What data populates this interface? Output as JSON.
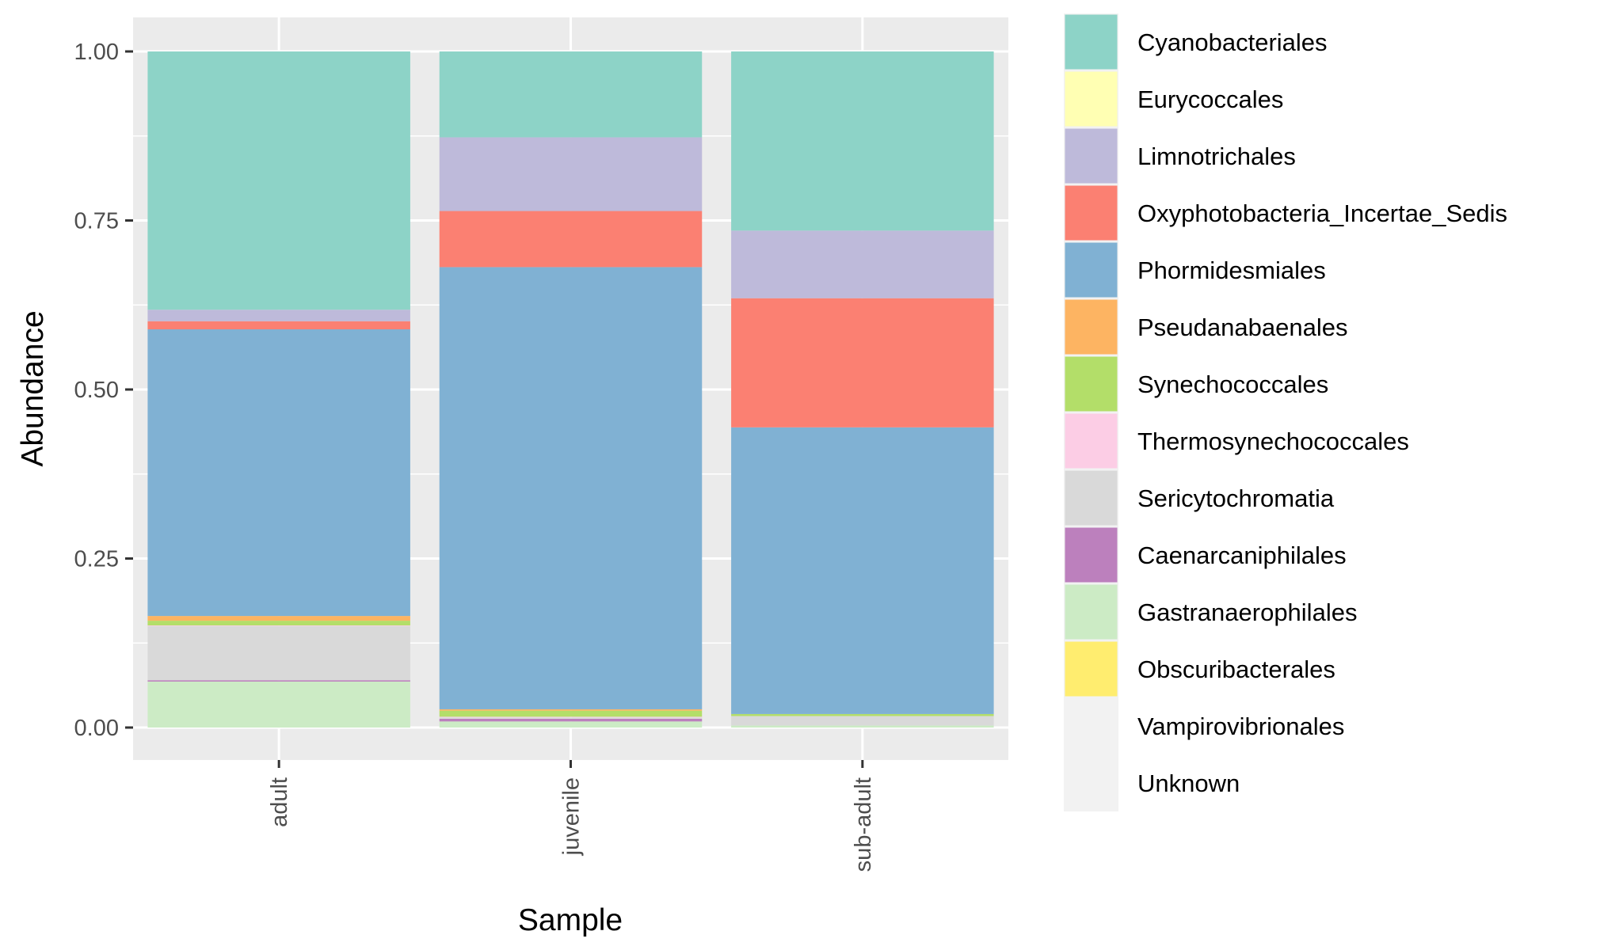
{
  "chart_data": {
    "type": "bar",
    "stacked": true,
    "xlabel": "Sample",
    "ylabel": "Abundance",
    "ylim": [
      0,
      1
    ],
    "yticks": [
      "0.00",
      "0.25",
      "0.50",
      "0.75",
      "1.00"
    ],
    "grid": true,
    "legend_position": "right",
    "categories": [
      "adult",
      "juvenile",
      "sub-adult"
    ],
    "series": [
      {
        "name": "Cyanobacteriales",
        "color": "#8DD3C7",
        "values": [
          0.382,
          0.127,
          0.265
        ]
      },
      {
        "name": "Eurycoccales",
        "color": "#FFFFB3",
        "values": [
          0,
          0,
          0
        ]
      },
      {
        "name": "Limnotrichales",
        "color": "#BEBADA",
        "values": [
          0.017,
          0.109,
          0.1
        ]
      },
      {
        "name": "Oxyphotobacteria_Incertae_Sedis",
        "color": "#FB8072",
        "values": [
          0.012,
          0.083,
          0.191
        ]
      },
      {
        "name": "Phormidesmiales",
        "color": "#80B1D3",
        "values": [
          0.424,
          0.654,
          0.424
        ]
      },
      {
        "name": "Pseudanabaenales",
        "color": "#FDB462",
        "values": [
          0.007,
          0.002,
          0
        ]
      },
      {
        "name": "Synechococcales",
        "color": "#B3DE69",
        "values": [
          0.007,
          0.009,
          0.003
        ]
      },
      {
        "name": "Thermosynechococcales",
        "color": "#FCCDE5",
        "values": [
          0.001,
          0.001,
          0
        ]
      },
      {
        "name": "Sericytochromatia",
        "color": "#D9D9D9",
        "values": [
          0.08,
          0.002,
          0.014
        ]
      },
      {
        "name": "Caenarcaniphilales",
        "color": "#BC80BD",
        "values": [
          0.002,
          0.004,
          0
        ]
      },
      {
        "name": "Gastranaerophilales",
        "color": "#CCEBC5",
        "values": [
          0.068,
          0.009,
          0.003
        ]
      },
      {
        "name": "Obscuribacterales",
        "color": "#FFED6F",
        "values": [
          0,
          0,
          0
        ]
      },
      {
        "name": "Vampirovibrionales",
        "color": "#F2F2F2",
        "values": [
          0,
          0,
          0
        ]
      },
      {
        "name": "Unknown",
        "color": "#F2F2F2",
        "values": [
          0,
          0,
          0
        ]
      }
    ]
  }
}
